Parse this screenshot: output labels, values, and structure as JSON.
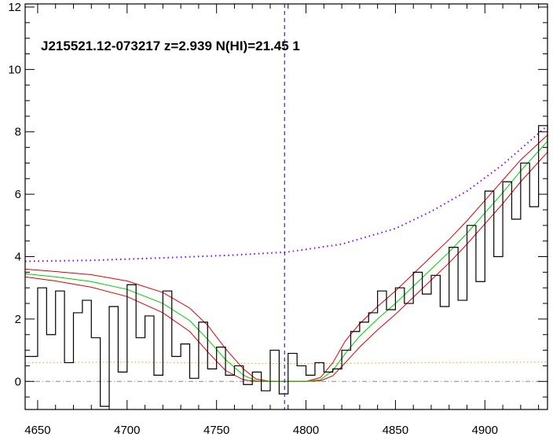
{
  "chart_data": {
    "type": "line",
    "title": "J215521.12-073217 z=2.939 N(HI)=21.45 1",
    "xlim": [
      4643,
      4935
    ],
    "ylim": [
      -0.9,
      12.1
    ],
    "xticks": [
      4650,
      4700,
      4750,
      4800,
      4850,
      4900
    ],
    "yticks": [
      0,
      2,
      4,
      6,
      8,
      10,
      12
    ],
    "grid": false,
    "marker_line_x": 4788,
    "zero_line_y": 0,
    "colors": {
      "flux": "#000000",
      "model": "#00cc00",
      "model_bounds": "#dd0000",
      "continuum": "#8800ff",
      "error": "#ff9900",
      "marker": "#0000cc",
      "zero": "#888888"
    },
    "series": [
      {
        "style": "flux-steps",
        "x": [
          4643,
          4650,
          4655,
          4660,
          4665,
          4670,
          4675,
          4680,
          4685,
          4690,
          4695,
          4700,
          4705,
          4710,
          4715,
          4720,
          4725,
          4730,
          4735,
          4740,
          4745,
          4750,
          4755,
          4760,
          4765,
          4770,
          4775,
          4780,
          4785,
          4790,
          4795,
          4800,
          4805,
          4810,
          4815,
          4820,
          4825,
          4830,
          4835,
          4840,
          4845,
          4850,
          4855,
          4860,
          4865,
          4870,
          4875,
          4880,
          4885,
          4890,
          4895,
          4900,
          4905,
          4910,
          4915,
          4920,
          4925,
          4930,
          4935
        ],
        "y": [
          0.8,
          3.0,
          1.5,
          2.9,
          0.6,
          2.2,
          2.6,
          1.4,
          -0.8,
          2.4,
          0.3,
          3.1,
          1.4,
          2.1,
          0.2,
          2.9,
          0.8,
          1.2,
          0.1,
          1.9,
          0.4,
          1.1,
          0.2,
          0.5,
          -0.1,
          0.3,
          -0.3,
          1.0,
          -0.4,
          0.9,
          0.5,
          0.2,
          0.6,
          0.3,
          0.4,
          1.0,
          1.6,
          1.9,
          2.2,
          2.9,
          2.3,
          3.0,
          2.5,
          3.5,
          2.8,
          3.4,
          2.4,
          4.3,
          2.6,
          5.0,
          3.2,
          6.1,
          4.0,
          6.4,
          5.2,
          7.0,
          5.6,
          8.2,
          7.3
        ]
      },
      {
        "name": "",
        "style": "model",
        "x": [
          4643,
          4660,
          4680,
          4700,
          4720,
          4735,
          4745,
          4755,
          4765,
          4772,
          4780,
          4790,
          4800,
          4808,
          4815,
          4822,
          4830,
          4840,
          4850,
          4860,
          4870,
          4880,
          4890,
          4900,
          4910,
          4920,
          4935
        ],
        "y": [
          3.45,
          3.35,
          3.2,
          2.95,
          2.5,
          1.95,
          1.35,
          0.7,
          0.2,
          0.02,
          0.0,
          0.0,
          0.0,
          0.05,
          0.35,
          0.9,
          1.45,
          2.0,
          2.5,
          3.05,
          3.6,
          4.15,
          4.75,
          5.4,
          6.05,
          6.75,
          7.7
        ]
      },
      {
        "name": "",
        "style": "model-upper",
        "x": [
          4643,
          4660,
          4680,
          4700,
          4720,
          4735,
          4745,
          4755,
          4765,
          4772,
          4780,
          4790,
          4800,
          4808,
          4815,
          4822,
          4830,
          4840,
          4850,
          4860,
          4870,
          4880,
          4890,
          4900,
          4910,
          4920,
          4935
        ],
        "y": [
          3.6,
          3.52,
          3.42,
          3.22,
          2.85,
          2.35,
          1.8,
          1.05,
          0.4,
          0.08,
          0.0,
          0.0,
          0.0,
          0.12,
          0.6,
          1.3,
          1.85,
          2.4,
          2.9,
          3.45,
          4.0,
          4.55,
          5.15,
          5.8,
          6.45,
          7.1,
          7.9
        ]
      },
      {
        "name": "",
        "style": "model-lower",
        "x": [
          4643,
          4660,
          4680,
          4700,
          4720,
          4735,
          4745,
          4755,
          4765,
          4772,
          4780,
          4790,
          4800,
          4808,
          4815,
          4822,
          4830,
          4840,
          4850,
          4860,
          4870,
          4880,
          4890,
          4900,
          4910,
          4920,
          4935
        ],
        "y": [
          3.35,
          3.22,
          3.02,
          2.72,
          2.2,
          1.6,
          0.95,
          0.35,
          0.05,
          0.0,
          0.0,
          0.0,
          0.0,
          0.02,
          0.18,
          0.6,
          1.1,
          1.65,
          2.15,
          2.7,
          3.25,
          3.8,
          4.4,
          5.05,
          5.7,
          6.4,
          7.35
        ]
      },
      {
        "name": "",
        "style": "continuum",
        "x": [
          4643,
          4680,
          4720,
          4760,
          4790,
          4820,
          4850,
          4870,
          4890,
          4910,
          4935
        ],
        "y": [
          3.85,
          3.88,
          3.96,
          4.05,
          4.15,
          4.4,
          4.9,
          5.45,
          6.1,
          6.95,
          8.2
        ]
      },
      {
        "name": "",
        "style": "error",
        "x": [
          4643,
          4700,
          4760,
          4800,
          4860,
          4935
        ],
        "y": [
          0.6,
          0.62,
          0.58,
          0.57,
          0.6,
          0.62
        ]
      }
    ]
  }
}
